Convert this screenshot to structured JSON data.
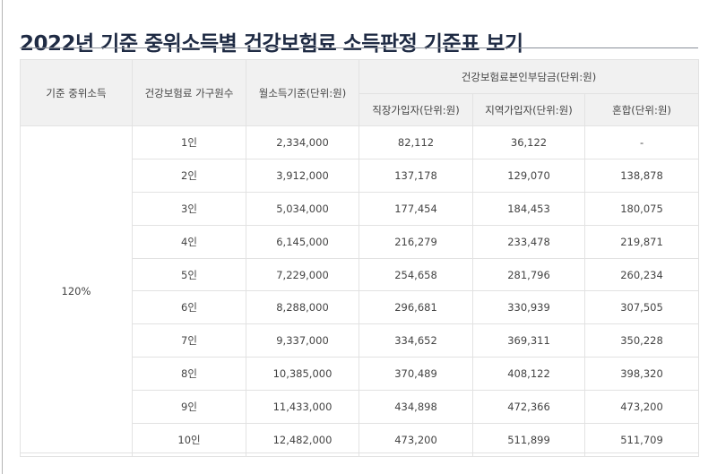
{
  "title": "2022년 기준 중위소득별 건강보험료 소득판정 기준표 보기",
  "table": {
    "headers": {
      "median_income": "기준 중위소득",
      "household_size": "건강보험료 가구원수",
      "monthly_income": "월소득기준(단위:원)",
      "premium_group": "건강보험료본인부담금(단위:원)",
      "workplace": "직장가입자(단위:원)",
      "regional": "지역가입자(단위:원)",
      "mixed": "혼합(단위:원)"
    },
    "group_label": "120%",
    "rows": [
      {
        "size": "1인",
        "income": "2,334,000",
        "workplace": "82,112",
        "regional": "36,122",
        "mixed": "-"
      },
      {
        "size": "2인",
        "income": "3,912,000",
        "workplace": "137,178",
        "regional": "129,070",
        "mixed": "138,878"
      },
      {
        "size": "3인",
        "income": "5,034,000",
        "workplace": "177,454",
        "regional": "184,453",
        "mixed": "180,075"
      },
      {
        "size": "4인",
        "income": "6,145,000",
        "workplace": "216,279",
        "regional": "233,478",
        "mixed": "219,871"
      },
      {
        "size": "5인",
        "income": "7,229,000",
        "workplace": "254,658",
        "regional": "281,796",
        "mixed": "260,234"
      },
      {
        "size": "6인",
        "income": "8,288,000",
        "workplace": "296,681",
        "regional": "330,939",
        "mixed": "307,505"
      },
      {
        "size": "7인",
        "income": "9,337,000",
        "workplace": "334,652",
        "regional": "369,311",
        "mixed": "350,228"
      },
      {
        "size": "8인",
        "income": "10,385,000",
        "workplace": "370,489",
        "regional": "408,122",
        "mixed": "398,320"
      },
      {
        "size": "9인",
        "income": "11,433,000",
        "workplace": "434,898",
        "regional": "472,366",
        "mixed": "473,200"
      },
      {
        "size": "10인",
        "income": "12,482,000",
        "workplace": "473,200",
        "regional": "511,899",
        "mixed": "511,709"
      }
    ]
  }
}
